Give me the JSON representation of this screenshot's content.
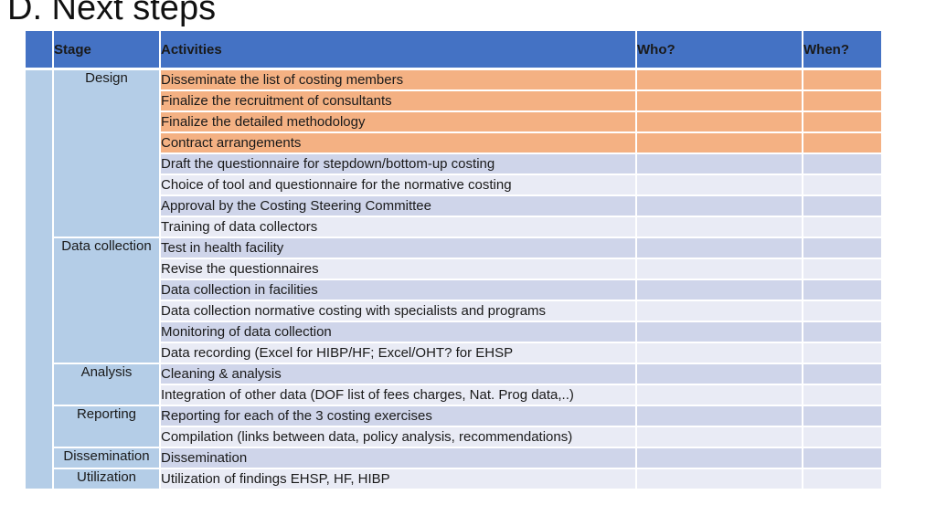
{
  "title": "D. Next steps",
  "table": {
    "headers": {
      "stage": "Stage",
      "activities": "Activities",
      "who": "Who?",
      "when": "When?"
    },
    "stages": {
      "design": "Design",
      "data_collection": "Data collection",
      "analysis": "Analysis",
      "reporting": "Reporting",
      "dissemination": "Dissemination",
      "utilization": "Utilization"
    },
    "activities": [
      "Disseminate the list of costing members",
      "Finalize the recruitment of consultants",
      "Finalize the detailed methodology",
      "Contract arrangements",
      "Draft the questionnaire for stepdown/bottom-up costing",
      "Choice of tool and questionnaire for the normative costing",
      "Approval by the Costing Steering Committee",
      "Training of data collectors",
      "Test in health facility",
      "Revise the questionnaires",
      "Data collection in facilities",
      "Data collection normative costing with specialists and programs",
      "Monitoring of data collection",
      "Data recording (Excel for HIBP/HF; Excel/OHT? for EHSP",
      "Cleaning & analysis",
      "Integration of other data (DOF list of fees charges, Nat. Prog data,..)",
      "Reporting for each of the 3 costing exercises",
      "Compilation (links between data, policy analysis, recommendations)",
      "Dissemination",
      "Utilization of findings EHSP, HF, HIBP"
    ],
    "colors": {
      "header": "#4472c4",
      "highlight": "#f4b183",
      "stage": "#b4cde7",
      "band_dark": "#cfd5ea",
      "band_light": "#e9ebf5"
    }
  }
}
